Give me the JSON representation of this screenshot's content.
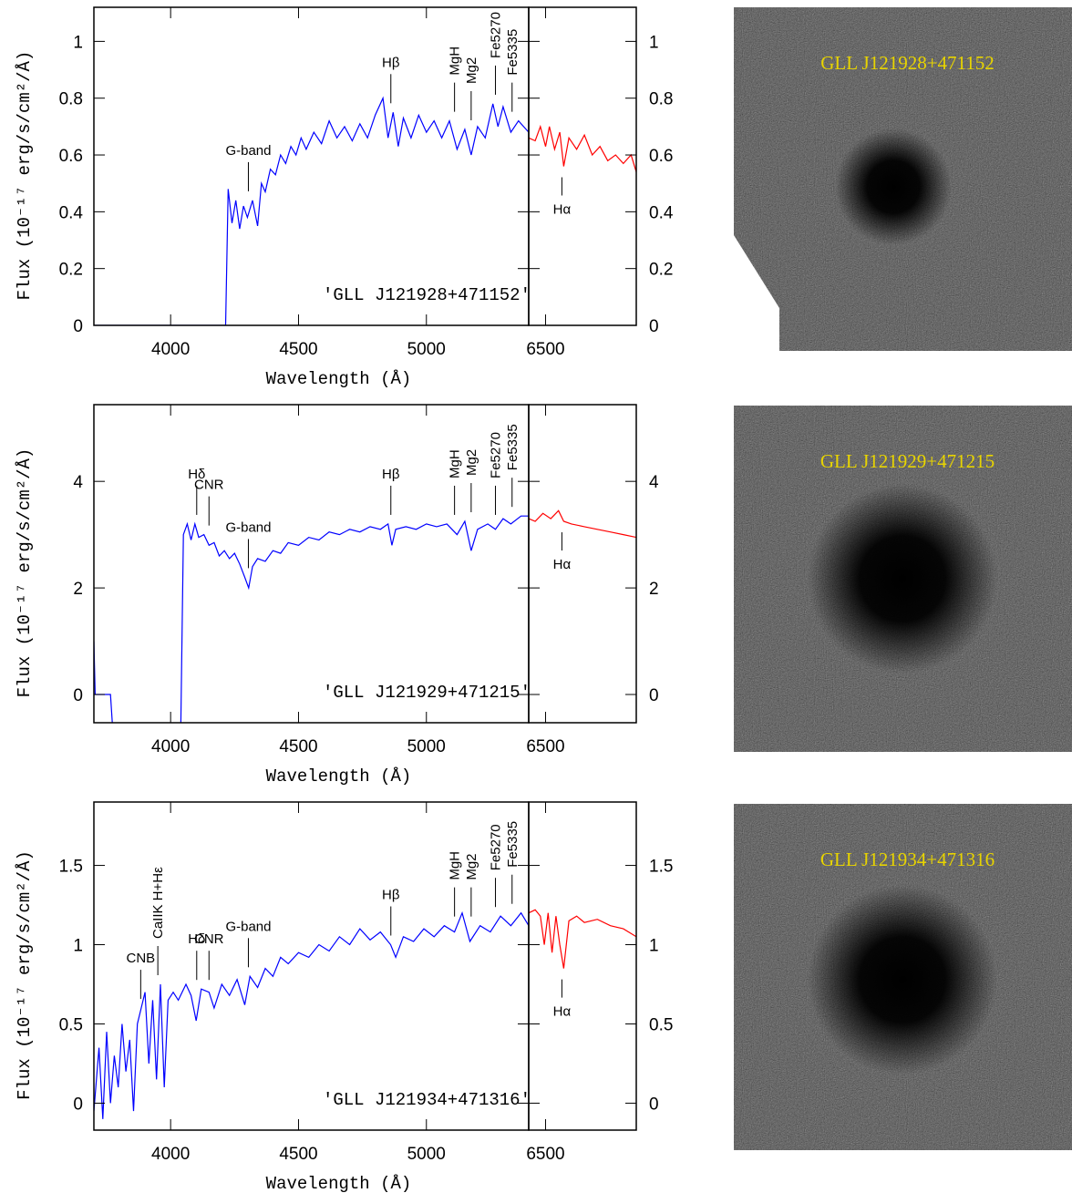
{
  "chart_data": [
    {
      "type": "line",
      "label": "'GLL J121928+471152'",
      "xlabel": "Wavelength (Å)",
      "ylabel": "Flux (10⁻¹⁷ erg/s/cm²/Å)",
      "xlim": [
        3700,
        5400
      ],
      "xticks": [
        4000,
        4500,
        5000
      ],
      "x2lim": [
        6435,
        6850
      ],
      "x2ticks": [
        6500
      ],
      "ylim": [
        0,
        1.12
      ],
      "yticks": [
        0,
        0.2,
        0.4,
        0.6,
        0.8,
        1
      ],
      "series": [
        {
          "color": "#0000ff",
          "x": [
            3700,
            4215,
            4225,
            4240,
            4255,
            4270,
            4285,
            4300,
            4320,
            4340,
            4355,
            4370,
            4390,
            4410,
            4430,
            4450,
            4470,
            4490,
            4510,
            4530,
            4560,
            4590,
            4620,
            4650,
            4680,
            4710,
            4740,
            4770,
            4800,
            4830,
            4850,
            4870,
            4890,
            4910,
            4940,
            4970,
            5000,
            5030,
            5060,
            5090,
            5120,
            5150,
            5175,
            5200,
            5230,
            5260,
            5280,
            5300,
            5330,
            5360,
            5400
          ],
          "values": [
            0,
            0,
            0.48,
            0.36,
            0.44,
            0.34,
            0.42,
            0.38,
            0.44,
            0.35,
            0.5,
            0.47,
            0.55,
            0.53,
            0.6,
            0.57,
            0.63,
            0.6,
            0.66,
            0.62,
            0.68,
            0.64,
            0.72,
            0.66,
            0.7,
            0.65,
            0.71,
            0.66,
            0.74,
            0.8,
            0.66,
            0.75,
            0.63,
            0.73,
            0.66,
            0.74,
            0.68,
            0.72,
            0.66,
            0.72,
            0.62,
            0.69,
            0.6,
            0.7,
            0.66,
            0.78,
            0.7,
            0.77,
            0.68,
            0.72,
            0.68
          ]
        },
        {
          "color": "#ff0000",
          "axis": "x2",
          "x": [
            6435,
            6460,
            6480,
            6500,
            6515,
            6535,
            6555,
            6570,
            6590,
            6620,
            6650,
            6680,
            6710,
            6740,
            6770,
            6800,
            6830,
            6850
          ],
          "values": [
            0.66,
            0.65,
            0.7,
            0.63,
            0.7,
            0.62,
            0.68,
            0.56,
            0.66,
            0.62,
            0.67,
            0.6,
            0.63,
            0.58,
            0.6,
            0.57,
            0.6,
            0.54
          ]
        }
      ],
      "features": [
        {
          "label": "G-band",
          "x": 4304
        },
        {
          "label": "Hβ",
          "x": 4861
        },
        {
          "label": "MgH",
          "x": 5110,
          "vertical": true
        },
        {
          "label": "Mg2",
          "x": 5175,
          "vertical": true
        },
        {
          "label": "Fe5270",
          "x": 5270,
          "vertical": true
        },
        {
          "label": "Fe5335",
          "x": 5335,
          "vertical": true
        },
        {
          "label": "Hα",
          "x": 6563,
          "below": true
        }
      ],
      "image_label": "GLL J121928+471152"
    },
    {
      "type": "line",
      "label": "'GLL J121929+471215'",
      "xlabel": "Wavelength (Å)",
      "ylabel": "Flux (10⁻¹⁷ erg/s/cm²/Å)",
      "xlim": [
        3700,
        5400
      ],
      "xticks": [
        4000,
        4500,
        5000
      ],
      "x2lim": [
        6435,
        6850
      ],
      "x2ticks": [
        6500
      ],
      "ylim": [
        -0.53,
        5.44
      ],
      "yticks": [
        0,
        2,
        4
      ],
      "series": [
        {
          "color": "#0000ff",
          "x": [
            3700,
            3705,
            3765,
            3772,
            null,
            4040,
            4050,
            4065,
            4080,
            4095,
            4110,
            4130,
            4150,
            4170,
            4190,
            4210,
            4230,
            4250,
            4270,
            4290,
            4305,
            4320,
            4340,
            4370,
            4400,
            4430,
            4460,
            4500,
            4540,
            4580,
            4620,
            4660,
            4700,
            4740,
            4780,
            4820,
            4850,
            4865,
            4880,
            4920,
            4960,
            5000,
            5040,
            5080,
            5120,
            5150,
            5175,
            5200,
            5240,
            5270,
            5300,
            5330,
            5370,
            5400
          ],
          "values": [
            1.0,
            0,
            0,
            -0.53,
            null,
            -0.53,
            3.0,
            3.2,
            2.9,
            3.2,
            2.95,
            3.0,
            2.8,
            2.85,
            2.6,
            2.7,
            2.55,
            2.65,
            2.45,
            2.2,
            2.0,
            2.4,
            2.55,
            2.5,
            2.7,
            2.65,
            2.85,
            2.8,
            2.95,
            2.9,
            3.05,
            3.0,
            3.1,
            3.05,
            3.15,
            3.1,
            3.2,
            2.8,
            3.1,
            3.15,
            3.1,
            3.2,
            3.15,
            3.2,
            3.0,
            3.25,
            2.7,
            3.1,
            3.2,
            3.1,
            3.3,
            3.2,
            3.35,
            3.35
          ]
        },
        {
          "color": "#ff0000",
          "axis": "x2",
          "x": [
            6435,
            6460,
            6490,
            6520,
            6550,
            6570,
            6600,
            6650,
            6700,
            6750,
            6800,
            6850
          ],
          "values": [
            3.3,
            3.25,
            3.4,
            3.3,
            3.45,
            3.25,
            3.2,
            3.15,
            3.1,
            3.05,
            3.0,
            2.95
          ]
        }
      ],
      "features": [
        {
          "label": "Hδ",
          "x": 4102
        },
        {
          "label": "CNR",
          "x": 4150
        },
        {
          "label": "G-band",
          "x": 4304
        },
        {
          "label": "Hβ",
          "x": 4861
        },
        {
          "label": "MgH",
          "x": 5110,
          "vertical": true
        },
        {
          "label": "Mg2",
          "x": 5175,
          "vertical": true
        },
        {
          "label": "Fe5270",
          "x": 5270,
          "vertical": true
        },
        {
          "label": "Fe5335",
          "x": 5335,
          "vertical": true
        },
        {
          "label": "Hα",
          "x": 6563,
          "below": true
        }
      ],
      "image_label": "GLL J121929+471215"
    },
    {
      "type": "line",
      "label": "'GLL J121934+471316'",
      "xlabel": "Wavelength (Å)",
      "ylabel": "Flux (10⁻¹⁷ erg/s/cm²/Å)",
      "xlim": [
        3700,
        5400
      ],
      "xticks": [
        4000,
        4500,
        5000
      ],
      "x2lim": [
        6435,
        6850
      ],
      "x2ticks": [
        6500
      ],
      "ylim": [
        -0.17,
        1.9
      ],
      "yticks": [
        0,
        0.5,
        1,
        1.5
      ],
      "series": [
        {
          "color": "#0000ff",
          "x": [
            3700,
            3720,
            3735,
            3750,
            3765,
            3780,
            3795,
            3810,
            3825,
            3840,
            3855,
            3870,
            3885,
            3900,
            3915,
            3930,
            3945,
            3960,
            3975,
            3990,
            4010,
            4030,
            4060,
            4080,
            4100,
            4120,
            4150,
            4170,
            4200,
            4230,
            4260,
            4290,
            4310,
            4340,
            4370,
            4400,
            4430,
            4460,
            4500,
            4540,
            4580,
            4620,
            4660,
            4700,
            4740,
            4780,
            4820,
            4860,
            4880,
            4910,
            4950,
            4990,
            5030,
            5070,
            5110,
            5140,
            5170,
            5210,
            5250,
            5290,
            5330,
            5370,
            5400
          ],
          "values": [
            -0.05,
            0.35,
            -0.1,
            0.45,
            0,
            0.3,
            0.1,
            0.5,
            0.2,
            0.4,
            -0.05,
            0.5,
            0.6,
            0.7,
            0.25,
            0.65,
            0.15,
            0.75,
            0.1,
            0.65,
            0.7,
            0.65,
            0.75,
            0.68,
            0.52,
            0.72,
            0.7,
            0.6,
            0.75,
            0.68,
            0.78,
            0.62,
            0.8,
            0.73,
            0.85,
            0.8,
            0.92,
            0.88,
            0.95,
            0.92,
            1.0,
            0.96,
            1.05,
            1.0,
            1.1,
            1.03,
            1.08,
            1.0,
            0.92,
            1.05,
            1.02,
            1.1,
            1.05,
            1.12,
            1.08,
            1.2,
            1.02,
            1.12,
            1.08,
            1.18,
            1.12,
            1.2,
            1.12
          ]
        },
        {
          "color": "#ff0000",
          "axis": "x2",
          "x": [
            6435,
            6460,
            6480,
            6495,
            6510,
            6525,
            6540,
            6555,
            6570,
            6590,
            6620,
            6650,
            6700,
            6750,
            6800,
            6850
          ],
          "values": [
            1.2,
            1.22,
            1.18,
            1.0,
            1.2,
            0.95,
            1.18,
            1.0,
            0.85,
            1.15,
            1.18,
            1.14,
            1.16,
            1.12,
            1.1,
            1.05
          ]
        }
      ],
      "features": [
        {
          "label": "CNB",
          "x": 3883
        },
        {
          "label": "CaIIK H+Hε",
          "x": 3950,
          "vertical": true
        },
        {
          "label": "Hδ",
          "x": 4102
        },
        {
          "label": "CNR",
          "x": 4150
        },
        {
          "label": "G-band",
          "x": 4304
        },
        {
          "label": "Hβ",
          "x": 4861
        },
        {
          "label": "MgH",
          "x": 5110,
          "vertical": true
        },
        {
          "label": "Mg2",
          "x": 5175,
          "vertical": true
        },
        {
          "label": "Fe5270",
          "x": 5270,
          "vertical": true
        },
        {
          "label": "Fe5335",
          "x": 5335,
          "vertical": true
        },
        {
          "label": "Hα",
          "x": 6563,
          "below": true
        }
      ],
      "image_label": "GLL J121934+471316"
    }
  ]
}
